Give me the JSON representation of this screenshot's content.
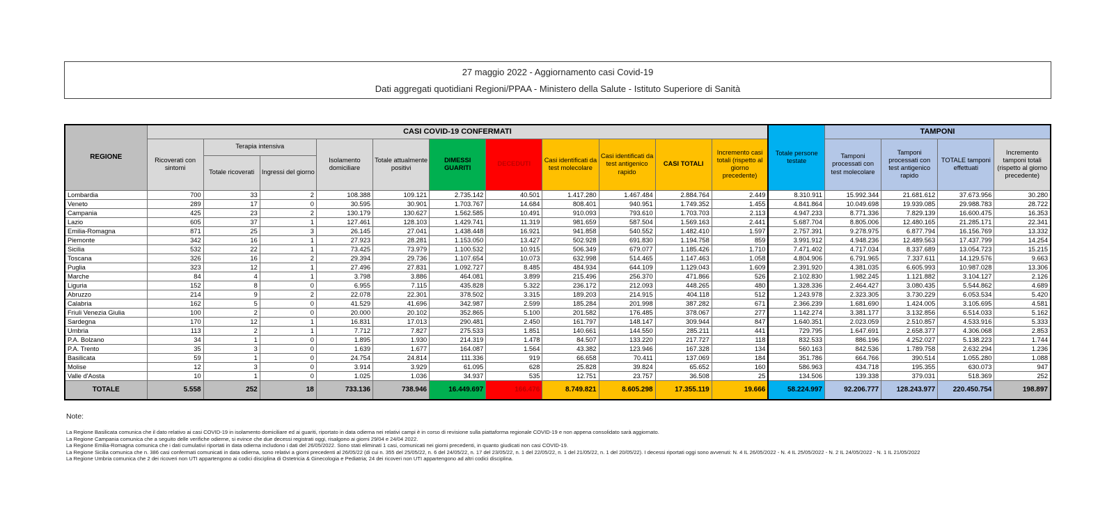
{
  "header": {
    "title_line1": "27 maggio 2022 - Aggiornamento casi Covid-19",
    "title_line2": "Dati aggregati quotidiani Regioni/PPAA - Ministero della Salute - Istituto Superiore di Sanità"
  },
  "table": {
    "corner_label": "REGIONE",
    "groups": {
      "confirmed": "CASI COVID-19 CONFERMATI",
      "swabs": "TAMPONI",
      "tested": "Totale persone testate",
      "intensive": "Terapia intensiva"
    },
    "columns": {
      "ricoverati_sintomi": "Ricoverati con sintomi",
      "totale_ricoverati": "Totale ricoverati",
      "ingressi_giorno": "Ingressi del giorno",
      "isolamento": "Isolamento domiciliare",
      "attualmente_positivi": "Totale attualmente positivi",
      "dimessi_guariti": "DIMESSI GUARITI",
      "deceduti": "DECEDUTI",
      "casi_molecolare": "Casi identificati da test molecolare",
      "casi_antigenico": "Casi identificati da test antigenico rapido",
      "casi_totali": "CASI TOTALI",
      "incremento_casi": "Incremento casi totali (rispetto al giorno precedente)",
      "tamponi_molecolare": "Tamponi processati con test molecolare",
      "tamponi_antigenico": "Tamponi processati con test antigenico rapido",
      "totale_tamponi": "TOTALE tamponi effettuati",
      "incremento_tamponi": "Incremento tamponi totali (rispetto al giorno precedente)"
    },
    "rows": [
      {
        "region": "Lombardia",
        "values": [
          "700",
          "33",
          "2",
          "108.388",
          "109.121",
          "2.735.142",
          "40.501",
          "1.417.280",
          "1.467.484",
          "2.884.764",
          "2.449",
          "8.310.911",
          "15.992.344",
          "21.681.612",
          "37.673.956",
          "30.280"
        ]
      },
      {
        "region": "Veneto",
        "values": [
          "289",
          "17",
          "0",
          "30.595",
          "30.901",
          "1.703.767",
          "14.684",
          "808.401",
          "940.951",
          "1.749.352",
          "1.455",
          "4.841.864",
          "10.049.698",
          "19.939.085",
          "29.988.783",
          "28.722"
        ]
      },
      {
        "region": "Campania",
        "values": [
          "425",
          "23",
          "2",
          "130.179",
          "130.627",
          "1.562.585",
          "10.491",
          "910.093",
          "793.610",
          "1.703.703",
          "2.113",
          "4.947.233",
          "8.771.336",
          "7.829.139",
          "16.600.475",
          "16.353"
        ]
      },
      {
        "region": "Lazio",
        "values": [
          "605",
          "37",
          "1",
          "127.461",
          "128.103",
          "1.429.741",
          "11.319",
          "981.659",
          "587.504",
          "1.569.163",
          "2.441",
          "5.687.704",
          "8.805.006",
          "12.480.165",
          "21.285.171",
          "22.341"
        ]
      },
      {
        "region": "Emilia-Romagna",
        "values": [
          "871",
          "25",
          "3",
          "26.145",
          "27.041",
          "1.438.448",
          "16.921",
          "941.858",
          "540.552",
          "1.482.410",
          "1.597",
          "2.757.391",
          "9.278.975",
          "6.877.794",
          "16.156.769",
          "13.332"
        ]
      },
      {
        "region": "Piemonte",
        "values": [
          "342",
          "16",
          "1",
          "27.923",
          "28.281",
          "1.153.050",
          "13.427",
          "502.928",
          "691.830",
          "1.194.758",
          "859",
          "3.991.912",
          "4.948.236",
          "12.489.563",
          "17.437.799",
          "14.254"
        ]
      },
      {
        "region": "Sicilia",
        "values": [
          "532",
          "22",
          "1",
          "73.425",
          "73.979",
          "1.100.532",
          "10.915",
          "506.349",
          "679.077",
          "1.185.426",
          "1.710",
          "7.471.402",
          "4.717.034",
          "8.337.689",
          "13.054.723",
          "15.215"
        ]
      },
      {
        "region": "Toscana",
        "values": [
          "326",
          "16",
          "2",
          "29.394",
          "29.736",
          "1.107.654",
          "10.073",
          "632.998",
          "514.465",
          "1.147.463",
          "1.058",
          "4.804.906",
          "6.791.965",
          "7.337.611",
          "14.129.576",
          "9.663"
        ]
      },
      {
        "region": "Puglia",
        "values": [
          "323",
          "12",
          "1",
          "27.496",
          "27.831",
          "1.092.727",
          "8.485",
          "484.934",
          "644.109",
          "1.129.043",
          "1.609",
          "2.391.920",
          "4.381.035",
          "6.605.993",
          "10.987.028",
          "13.306"
        ]
      },
      {
        "region": "Marche",
        "values": [
          "84",
          "4",
          "1",
          "3.798",
          "3.886",
          "464.081",
          "3.899",
          "215.496",
          "256.370",
          "471.866",
          "526",
          "2.102.830",
          "1.982.245",
          "1.121.882",
          "3.104.127",
          "2.126"
        ]
      },
      {
        "region": "Liguria",
        "values": [
          "152",
          "8",
          "0",
          "6.955",
          "7.115",
          "435.828",
          "5.322",
          "236.172",
          "212.093",
          "448.265",
          "480",
          "1.328.336",
          "2.464.427",
          "3.080.435",
          "5.544.862",
          "4.689"
        ]
      },
      {
        "region": "Abruzzo",
        "values": [
          "214",
          "9",
          "2",
          "22.078",
          "22.301",
          "378.502",
          "3.315",
          "189.203",
          "214.915",
          "404.118",
          "512",
          "1.243.978",
          "2.323.305",
          "3.730.229",
          "6.053.534",
          "5.420"
        ]
      },
      {
        "region": "Calabria",
        "values": [
          "162",
          "5",
          "0",
          "41.529",
          "41.696",
          "342.987",
          "2.599",
          "185.284",
          "201.998",
          "387.282",
          "671",
          "2.366.239",
          "1.681.690",
          "1.424.005",
          "3.105.695",
          "4.581"
        ]
      },
      {
        "region": "Friuli Venezia Giulia",
        "values": [
          "100",
          "2",
          "0",
          "20.000",
          "20.102",
          "352.865",
          "5.100",
          "201.582",
          "176.485",
          "378.067",
          "277",
          "1.142.274",
          "3.381.177",
          "3.132.856",
          "6.514.033",
          "5.162"
        ]
      },
      {
        "region": "Sardegna",
        "values": [
          "170",
          "12",
          "1",
          "16.831",
          "17.013",
          "290.481",
          "2.450",
          "161.797",
          "148.147",
          "309.944",
          "847",
          "1.640.351",
          "2.023.059",
          "2.510.857",
          "4.533.916",
          "5.333"
        ]
      },
      {
        "region": "Umbria",
        "values": [
          "113",
          "2",
          "1",
          "7.712",
          "7.827",
          "275.533",
          "1.851",
          "140.661",
          "144.550",
          "285.211",
          "441",
          "729.795",
          "1.647.691",
          "2.658.377",
          "4.306.068",
          "2.853"
        ]
      },
      {
        "region": "P.A. Bolzano",
        "values": [
          "34",
          "1",
          "0",
          "1.895",
          "1.930",
          "214.319",
          "1.478",
          "84.507",
          "133.220",
          "217.727",
          "118",
          "832.533",
          "886.196",
          "4.252.027",
          "5.138.223",
          "1.744"
        ]
      },
      {
        "region": "P.A. Trento",
        "values": [
          "35",
          "3",
          "0",
          "1.639",
          "1.677",
          "164.087",
          "1.564",
          "43.382",
          "123.946",
          "167.328",
          "134",
          "560.163",
          "842.536",
          "1.789.758",
          "2.632.294",
          "1.236"
        ]
      },
      {
        "region": "Basilicata",
        "values": [
          "59",
          "1",
          "0",
          "24.754",
          "24.814",
          "111.336",
          "919",
          "66.658",
          "70.411",
          "137.069",
          "184",
          "351.786",
          "664.766",
          "390.514",
          "1.055.280",
          "1.088"
        ]
      },
      {
        "region": "Molise",
        "values": [
          "12",
          "3",
          "0",
          "3.914",
          "3.929",
          "61.095",
          "628",
          "25.828",
          "39.824",
          "65.652",
          "160",
          "586.963",
          "434.718",
          "195.355",
          "630.073",
          "947"
        ]
      },
      {
        "region": "Valle d'Aosta",
        "values": [
          "10",
          "1",
          "0",
          "1.025",
          "1.036",
          "34.937",
          "535",
          "12.751",
          "23.757",
          "36.508",
          "25",
          "134.506",
          "139.338",
          "379.031",
          "518.369",
          "252"
        ]
      }
    ],
    "total_row": {
      "label": "TOTALE",
      "values": [
        "5.558",
        "252",
        "18",
        "733.136",
        "738.946",
        "16.449.697",
        "166.476",
        "8.749.821",
        "8.605.298",
        "17.355.119",
        "19.666",
        "58.224.997",
        "92.206.777",
        "128.243.977",
        "220.450.754",
        "198.897"
      ]
    }
  },
  "notes": {
    "label": "Note:",
    "items": [
      "La Regione Basilicata comunica che il dato relativo ai casi COVID-19 in isolamento domiciliare ed ai guariti, riportato in data odierna nei relativi campi è in corso di revisione sulla piattaforma regionale COVID-19 e non appena consolidato sarà aggiornato.",
      "La Regione Campania comunica che a seguito delle verifiche odierne, si evince che due decessi registrati oggi, risalgono ai giorni 29/04 e 24/04 2022.",
      "La Regione Emilia-Romagna  comunica che i dati cumulativi riportati in data odierna includono i dati del 26/05/2022. Sono stati eliminati 1 casi, comunicati nei giorni precedenti, in quanto giudicati non casi COVID-19.",
      "La Regione Sicilia comunica che n. 386 casi confermati comunicati in data odierna,  sono relativi a giorni precedenti al 26/05/22 (di cui n. 355 del 25/05/22, n. 6 del 24/05/22, n. 17 del 23/05/22, n. 1 del 22/05/22, n. 1 del 21/05/22, n. 1 del 20/05/22). I decessi riportati oggi sono avvenuti: N. 4 IL 26/05/2022 - N. 4 IL 25/05/2022 - N. 2 IL 24/05/2022 - N. 1 IL 21/05/2022",
      "La Regione Umbria comunica che 2 dei ricoveri non UTI appartengono ai codici disciplina di Ostetricia & Ginecologia e Pediatria; 24 dei ricoveri non UTI appartengono ad altri codici disciplina."
    ]
  },
  "colors": {
    "green": "#00B050",
    "red": "#FF0000",
    "dark_red_text": "#C00000",
    "yellow": "#FFC000",
    "cyan": "#00B0F0",
    "light_blue": "#B4C7E7",
    "light_gray": "#D9D9D9",
    "medium_gray": "#BFBFBF"
  }
}
